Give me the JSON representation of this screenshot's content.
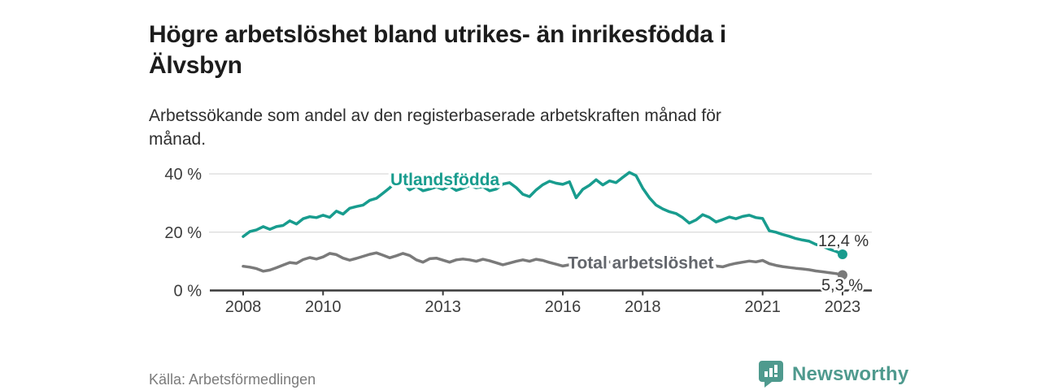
{
  "header": {
    "title": "Högre arbetslöshet bland utrikes- än inrikesfödda i\nÄlvsbyn",
    "subtitle": "Arbetssökande som andel av den registerbaserade arbetskraften månad för\nmånad."
  },
  "footer": {
    "source": "Källa: Arbetsförmedlingen",
    "brand_name": "Newsworthy",
    "brand_icon": "bar-chart-speech-bubble-icon",
    "brand_color": "#4f9a8e"
  },
  "colors": {
    "grid": "#dadada",
    "axis": "#3a3a3a",
    "axis_text": "#3c3c3c",
    "value_label": "#333333",
    "background": "#ffffff"
  },
  "chart_data": {
    "type": "line",
    "title": "Högre arbetslöshet bland utrikes- än inrikesfödda i Älvsbyn",
    "subtitle": "Arbetssökande som andel av den registerbaserade arbetskraften månad för månad.",
    "xlabel": "",
    "ylabel": "",
    "unit": "%",
    "grid": "horizontal",
    "legend": "inline-labels",
    "x_axis": {
      "range_years": [
        2007.2,
        2023.7
      ],
      "ticks": [
        2008,
        2010,
        2013,
        2016,
        2018,
        2021,
        2023
      ],
      "tick_labels": [
        "2008",
        "2010",
        "2013",
        "2016",
        "2018",
        "2021",
        "2023"
      ]
    },
    "y_axis": {
      "range": [
        0,
        42
      ],
      "ticks": [
        0,
        20,
        40
      ],
      "tick_labels": [
        "0 %",
        "20 %",
        "40 %"
      ]
    },
    "series": [
      {
        "id": "utlandsfodda",
        "name": "Utlandsfödda",
        "color": "#189c8e",
        "start": 2008.0,
        "step": 0.1666667,
        "end_value": 12.4,
        "end_label": "12,4 %",
        "label_dx": -30,
        "label_dy": -10,
        "values": [
          18.5,
          20.2,
          20.8,
          21.9,
          21.0,
          21.9,
          22.3,
          23.9,
          22.8,
          24.6,
          25.3,
          25.0,
          25.8,
          25.1,
          27.2,
          26.2,
          28.2,
          28.8,
          29.3,
          30.9,
          31.6,
          33.4,
          35.2,
          37.4,
          36.7,
          34.5,
          35.7,
          34.2,
          34.8,
          35.5,
          34.7,
          35.8,
          34.3,
          35.1,
          36.0,
          35.2,
          35.6,
          34.2,
          34.8,
          36.5,
          37.0,
          35.3,
          33.0,
          32.2,
          34.5,
          36.3,
          37.5,
          36.8,
          36.4,
          37.3,
          31.8,
          34.7,
          36.1,
          38.0,
          36.2,
          37.6,
          37.0,
          38.8,
          40.5,
          39.4,
          35.1,
          31.8,
          29.3,
          28.0,
          27.0,
          26.4,
          25.0,
          23.1,
          24.2,
          26.0,
          25.1,
          23.5,
          24.3,
          25.2,
          24.6,
          25.4,
          25.8,
          25.0,
          24.7,
          20.5,
          20.0,
          19.2,
          18.6,
          17.8,
          17.3,
          16.9,
          15.8,
          15.2,
          14.2,
          13.4,
          12.4
        ]
      },
      {
        "id": "total",
        "name": "Total arbetslöshet",
        "color": "#7a7a7a",
        "start": 2008.0,
        "step": 0.1666667,
        "end_value": 5.3,
        "end_label": "5,3 %",
        "label_dx": -26,
        "label_dy": 19,
        "values": [
          8.3,
          8.0,
          7.5,
          6.6,
          7.0,
          7.8,
          8.7,
          9.6,
          9.3,
          10.6,
          11.3,
          10.8,
          11.5,
          12.7,
          12.3,
          11.1,
          10.4,
          11.0,
          11.7,
          12.4,
          12.9,
          12.1,
          11.2,
          11.9,
          12.7,
          12.0,
          10.5,
          9.7,
          10.9,
          11.1,
          10.4,
          9.7,
          10.5,
          10.8,
          10.5,
          10.0,
          10.7,
          10.2,
          9.5,
          8.8,
          9.4,
          10.0,
          10.5,
          10.0,
          10.7,
          10.3,
          9.6,
          9.0,
          8.4,
          8.8,
          9.5,
          9.9,
          9.4,
          8.9,
          9.3,
          9.8,
          9.3,
          8.6,
          9.0,
          9.4,
          8.7,
          8.2,
          7.8,
          8.3,
          8.7,
          8.3,
          7.9,
          7.4,
          7.8,
          8.2,
          7.9,
          8.4,
          8.1,
          8.8,
          9.3,
          9.7,
          10.1,
          9.8,
          10.3,
          9.2,
          8.6,
          8.2,
          7.9,
          7.6,
          7.4,
          7.1,
          6.7,
          6.4,
          6.1,
          5.8,
          5.3
        ]
      }
    ],
    "annotations": [
      {
        "text": "Utlandsfödda",
        "x": 2013.05,
        "y": 38.1,
        "color": "#189c8e"
      },
      {
        "text": "Total arbetslöshet",
        "x": 2017.95,
        "y": 9.5,
        "color": "#63666c"
      }
    ]
  }
}
